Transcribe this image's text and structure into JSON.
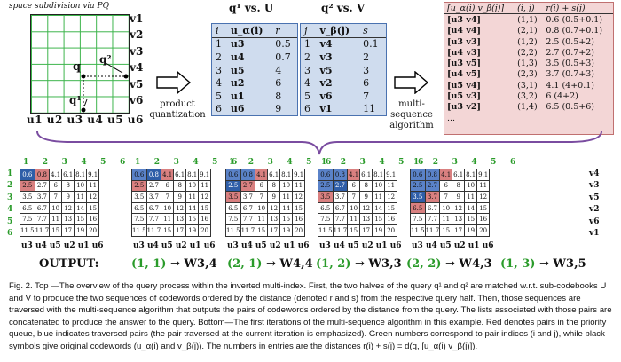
{
  "top_left": {
    "label": "space subdivision via PQ",
    "v_labels": [
      "v1",
      "v2",
      "v3",
      "v4",
      "v5",
      "v6"
    ],
    "u_labels": "u1 u2 u3 u4 u5 u6",
    "q": "q",
    "q1": "q¹",
    "q2": "q²"
  },
  "product_quantization": "product quantization",
  "table1": {
    "title": "q¹ vs. U",
    "headers": [
      "i",
      "u_α(i)",
      "r"
    ],
    "rows": [
      [
        "1",
        "u3",
        "0.5"
      ],
      [
        "2",
        "u4",
        "0.7"
      ],
      [
        "3",
        "u5",
        "4"
      ],
      [
        "4",
        "u2",
        "6"
      ],
      [
        "5",
        "u1",
        "8"
      ],
      [
        "6",
        "u6",
        "9"
      ]
    ]
  },
  "table2": {
    "title": "q² vs. V",
    "headers": [
      "j",
      "v_β(j)",
      "s"
    ],
    "rows": [
      [
        "1",
        "v4",
        "0.1"
      ],
      [
        "2",
        "v3",
        "2"
      ],
      [
        "3",
        "v5",
        "3"
      ],
      [
        "4",
        "v2",
        "6"
      ],
      [
        "5",
        "v6",
        "7"
      ],
      [
        "6",
        "v1",
        "11"
      ]
    ]
  },
  "multi_sequence": "multi-sequence algorithm",
  "table3": {
    "headers": [
      "[u_α(i) v_β(j)]",
      "(i, j)",
      "r(i) + s(j)"
    ],
    "rows": [
      [
        "[u3 v4]",
        "(1,1)",
        "0.6 (0.5+0.1)"
      ],
      [
        "[u4 v4]",
        "(2,1)",
        "0.8 (0.7+0.1)"
      ],
      [
        "[u3 v3]",
        "(1,2)",
        "2.5 (0.5+2)"
      ],
      [
        "[u4 v3]",
        "(2,2)",
        "2.7 (0.7+2)"
      ],
      [
        "[u3 v5]",
        "(1,3)",
        "3.5 (0.5+3)"
      ],
      [
        "[u4 v5]",
        "(2,3)",
        "3.7 (0.7+3)"
      ],
      [
        "[u5 v4]",
        "(3,1)",
        "4.1 (4+0.1)"
      ],
      [
        "[u5 v3]",
        "(3,2)",
        "6 (4+2)"
      ],
      [
        "[u3 v2]",
        "(1,4)",
        "6.5 (0.5+6)"
      ],
      [
        "...",
        "",
        ""
      ]
    ]
  },
  "matrix": {
    "col_nums": "1 2 3 4 5 6",
    "row_nums": [
      "1",
      "2",
      "3",
      "4",
      "5",
      "6"
    ],
    "cells": [
      [
        "0.6",
        "0.8",
        "4.1",
        "6.1",
        "8.1",
        "9.1"
      ],
      [
        "2.5",
        "2.7",
        "6",
        "8",
        "10",
        "11"
      ],
      [
        "3.5",
        "3.7",
        "7",
        "9",
        "11",
        "12"
      ],
      [
        "6.5",
        "6.7",
        "10",
        "12",
        "14",
        "15"
      ],
      [
        "7.5",
        "7.7",
        "11",
        "13",
        "15",
        "16"
      ],
      [
        "11.5",
        "11.7",
        "15",
        "17",
        "19",
        "20"
      ]
    ],
    "v_side": [
      "v4",
      "v3",
      "v5",
      "v2",
      "v6",
      "v1"
    ],
    "u_bottom": "u3 u4 u5 u2 u1 u6"
  },
  "output_label": "OUTPUT:",
  "outputs": [
    {
      "pair": "(1, 1)",
      "arrow": "→",
      "word": "W3,4"
    },
    {
      "pair": "(2, 1)",
      "arrow": "→",
      "word": "W4,4"
    },
    {
      "pair": "(1, 2)",
      "arrow": "→",
      "word": "W3,3"
    },
    {
      "pair": "(2, 2)",
      "arrow": "→",
      "word": "W4,3"
    },
    {
      "pair": "(1, 3)",
      "arrow": "→",
      "word": "W3,5"
    }
  ],
  "caption": "Fig. 2. Top —The overview of the query process within the inverted multi-index. First, the two halves of the query q¹ and q² are matched w.r.t. sub-codebooks U and V to produce the two sequences of codewords ordered by the distance (denoted r and s) from the respective query half. Then, those sequences are traversed with the multi-sequence algorithm that outputs the pairs of codewords ordered by the distance from the query. The lists associated with those pairs are concatenated to produce the answer to the query. Bottom—The first iterations of the multi-sequence algorithm in this example. Red denotes pairs in the priority queue, blue indicates traversed pairs (the pair traversed at the current iteration is emphasized). Green numbers correspond to pair indices (i and j), while black symbols give original codewords (u_α(i) and v_β(j)). The numbers in entries are the distances r(i) + s(j) = d(q, [u_α(i) v_β(j)])."
}
